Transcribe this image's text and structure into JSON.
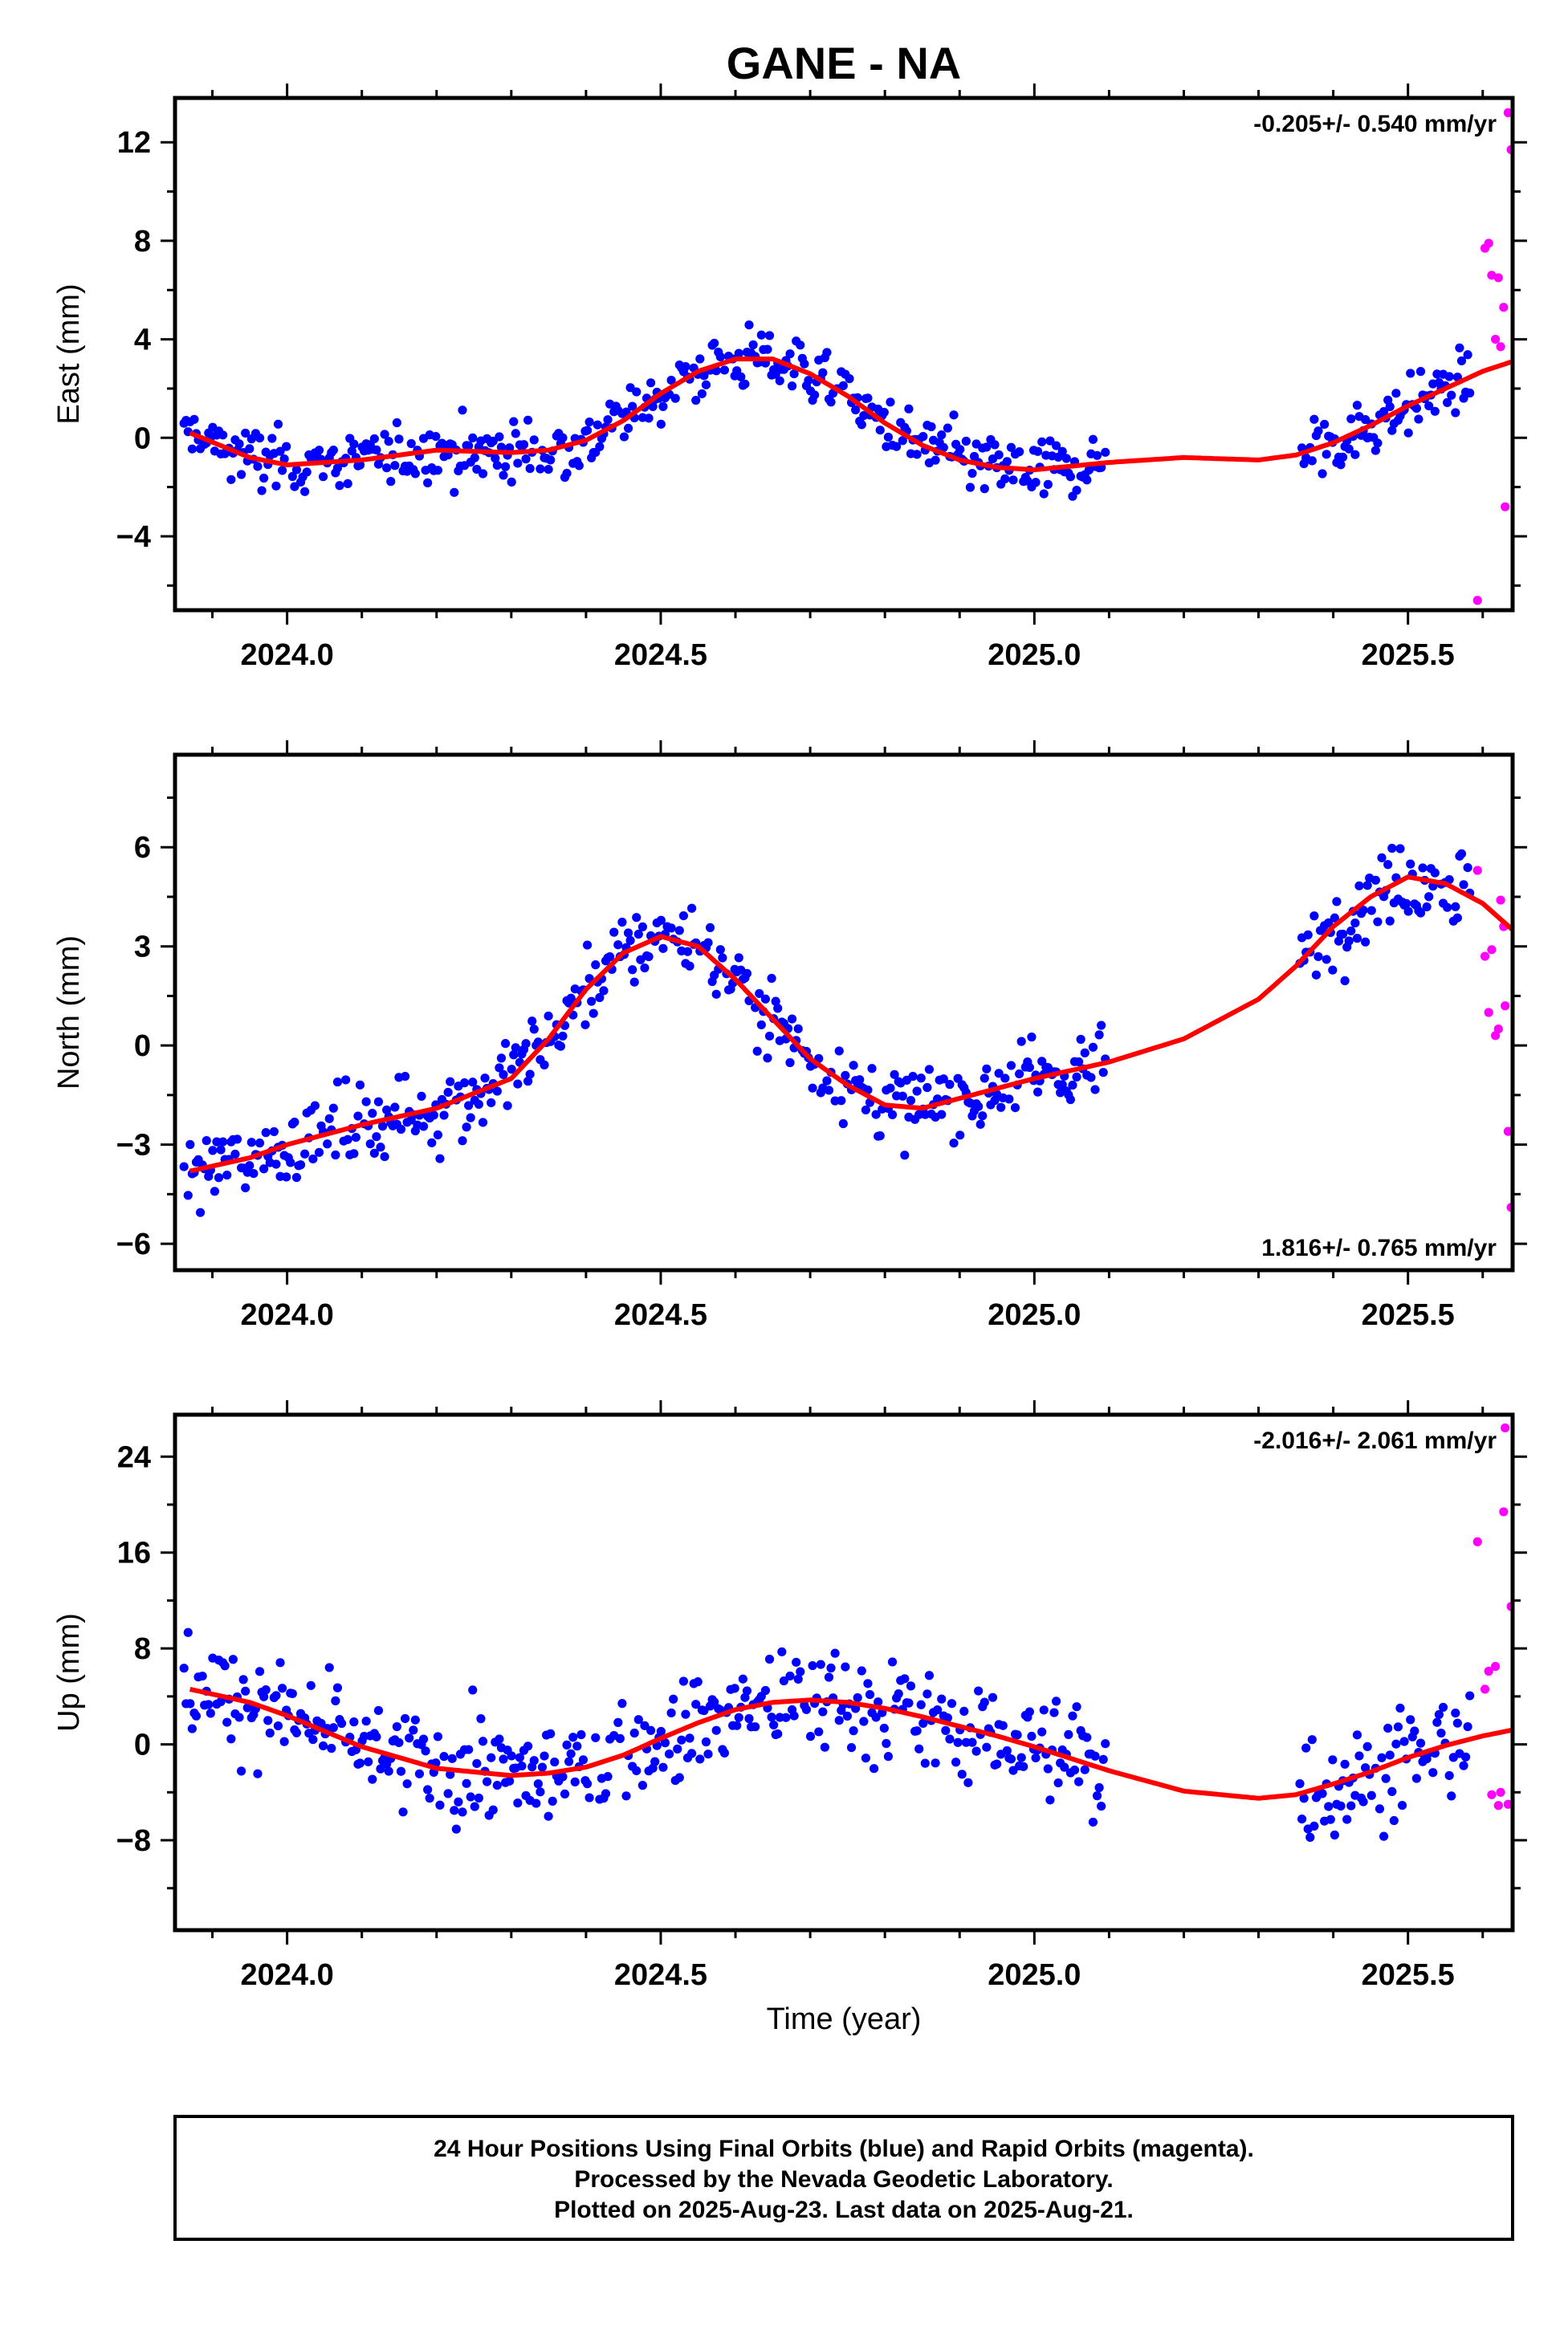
{
  "title": "GANE - NA",
  "xlabel": "Time (year)",
  "footer": {
    "line1": "24 Hour Positions Using Final Orbits (blue) and Rapid Orbits (magenta).",
    "line2": "Processed by the Nevada Geodetic Laboratory.",
    "line3": "Plotted on 2025-Aug-23. Last data on 2025-Aug-21."
  },
  "colors": {
    "final": "#0000ff",
    "rapid": "#ff00ff",
    "model": "#ff0000",
    "frame": "#000000"
  },
  "chart_data": [
    {
      "type": "scatter",
      "panel": "east",
      "ylabel": "East (mm)",
      "rate": "-0.205+/- 0.540 mm/yr",
      "rate_position": "top-right",
      "xlim": [
        2023.85,
        2025.64
      ],
      "ylim": [
        -7.0,
        13.8
      ],
      "xticks": [
        2024.0,
        2024.5,
        2025.0,
        2025.5
      ],
      "xtick_labels": [
        "2024.0",
        "2024.5",
        "2025.0",
        "2025.5"
      ],
      "yticks": [
        -4,
        0,
        4,
        8,
        12
      ],
      "ytick_labels": [
        "−4",
        "0",
        "4",
        "8",
        "12"
      ],
      "model": {
        "x": [
          2023.87,
          2023.95,
          2024.0,
          2024.1,
          2024.2,
          2024.3,
          2024.35,
          2024.4,
          2024.45,
          2024.5,
          2024.55,
          2024.6,
          2024.65,
          2024.7,
          2024.75,
          2024.8,
          2024.85,
          2024.9,
          2024.95,
          2025.0,
          2025.1,
          2025.2,
          2025.3,
          2025.35,
          2025.4,
          2025.45,
          2025.5,
          2025.55,
          2025.6,
          2025.64
        ],
        "y": [
          0.2,
          -0.8,
          -1.1,
          -0.9,
          -0.5,
          -0.6,
          -0.5,
          -0.1,
          0.7,
          1.8,
          2.7,
          3.2,
          3.2,
          2.6,
          1.7,
          0.6,
          -0.3,
          -0.9,
          -1.2,
          -1.3,
          -1.0,
          -0.8,
          -0.9,
          -0.7,
          -0.2,
          0.5,
          1.3,
          2.0,
          2.7,
          3.1
        ]
      },
      "rapid": {
        "x": [
          2025.593,
          2025.603,
          2025.608,
          2025.612,
          2025.617,
          2025.621,
          2025.624,
          2025.628,
          2025.63,
          2025.634,
          2025.638
        ],
        "y": [
          -6.6,
          7.7,
          7.9,
          6.6,
          4.0,
          6.5,
          3.7,
          5.3,
          -2.8,
          13.2,
          11.7
        ]
      },
      "final_model": "seasonal",
      "final_scatter": 1.0
    },
    {
      "type": "scatter",
      "panel": "north",
      "ylabel": "North (mm)",
      "rate": "1.816+/- 0.765 mm/yr",
      "rate_position": "bottom-right",
      "xlim": [
        2023.85,
        2025.64
      ],
      "ylim": [
        -6.8,
        8.8
      ],
      "xticks": [
        2024.0,
        2024.5,
        2025.0,
        2025.5
      ],
      "xtick_labels": [
        "2024.0",
        "2024.5",
        "2025.0",
        "2025.5"
      ],
      "yticks": [
        -6,
        -3,
        0,
        3,
        6
      ],
      "ytick_labels": [
        "−6",
        "−3",
        "0",
        "3",
        "6"
      ],
      "model": {
        "x": [
          2023.87,
          2023.95,
          2024.0,
          2024.1,
          2024.2,
          2024.3,
          2024.35,
          2024.4,
          2024.45,
          2024.5,
          2024.55,
          2024.6,
          2024.65,
          2024.7,
          2024.75,
          2024.8,
          2024.85,
          2024.9,
          2024.95,
          2025.0,
          2025.1,
          2025.2,
          2025.3,
          2025.35,
          2025.4,
          2025.45,
          2025.5,
          2025.55,
          2025.6,
          2025.64
        ],
        "y": [
          -3.8,
          -3.4,
          -3.0,
          -2.4,
          -1.9,
          -1.0,
          0.2,
          1.7,
          2.8,
          3.3,
          3.0,
          2.0,
          0.8,
          -0.4,
          -1.2,
          -1.8,
          -1.9,
          -1.6,
          -1.3,
          -1.0,
          -0.5,
          0.2,
          1.4,
          2.4,
          3.6,
          4.5,
          5.1,
          4.9,
          4.3,
          3.5
        ]
      },
      "rapid": {
        "x": [
          2025.593,
          2025.603,
          2025.608,
          2025.612,
          2025.617,
          2025.621,
          2025.624,
          2025.628,
          2025.63,
          2025.634,
          2025.638
        ],
        "y": [
          5.3,
          2.7,
          1.0,
          2.9,
          0.3,
          0.5,
          4.4,
          3.6,
          1.2,
          -2.6,
          -4.9
        ]
      },
      "final_model": "seasonal",
      "final_scatter": 1.0
    },
    {
      "type": "scatter",
      "panel": "up",
      "ylabel": "Up (mm)",
      "rate": "-2.016+/- 2.061 mm/yr",
      "rate_position": "top-right",
      "xlim": [
        2023.85,
        2025.64
      ],
      "ylim": [
        -15.5,
        27.5
      ],
      "xticks": [
        2024.0,
        2024.5,
        2025.0,
        2025.5
      ],
      "xtick_labels": [
        "2024.0",
        "2024.5",
        "2025.0",
        "2025.5"
      ],
      "yticks": [
        -8,
        0,
        8,
        16,
        24
      ],
      "ytick_labels": [
        "−8",
        "0",
        "8",
        "16",
        "24"
      ],
      "model": {
        "x": [
          2023.87,
          2023.95,
          2024.0,
          2024.1,
          2024.2,
          2024.3,
          2024.35,
          2024.4,
          2024.45,
          2024.5,
          2024.55,
          2024.6,
          2024.65,
          2024.7,
          2024.75,
          2024.8,
          2024.85,
          2024.9,
          2024.95,
          2025.0,
          2025.1,
          2025.2,
          2025.3,
          2025.35,
          2025.4,
          2025.45,
          2025.5,
          2025.55,
          2025.6,
          2025.64
        ],
        "y": [
          4.6,
          3.5,
          2.4,
          -0.2,
          -2.0,
          -2.6,
          -2.4,
          -1.9,
          -0.9,
          0.5,
          1.8,
          2.9,
          3.5,
          3.7,
          3.5,
          3.0,
          2.3,
          1.5,
          0.7,
          -0.2,
          -2.2,
          -3.9,
          -4.5,
          -4.2,
          -3.3,
          -2.3,
          -1.1,
          -0.1,
          0.7,
          1.2
        ]
      },
      "rapid": {
        "x": [
          2025.593,
          2025.603,
          2025.608,
          2025.612,
          2025.617,
          2025.621,
          2025.624,
          2025.628,
          2025.63,
          2025.634,
          2025.638
        ],
        "y": [
          16.9,
          4.6,
          6.1,
          -4.2,
          6.5,
          -5.1,
          -4.0,
          19.4,
          26.4,
          -5.0,
          11.5
        ]
      },
      "final_model": "seasonal",
      "final_scatter": 3.6
    }
  ]
}
